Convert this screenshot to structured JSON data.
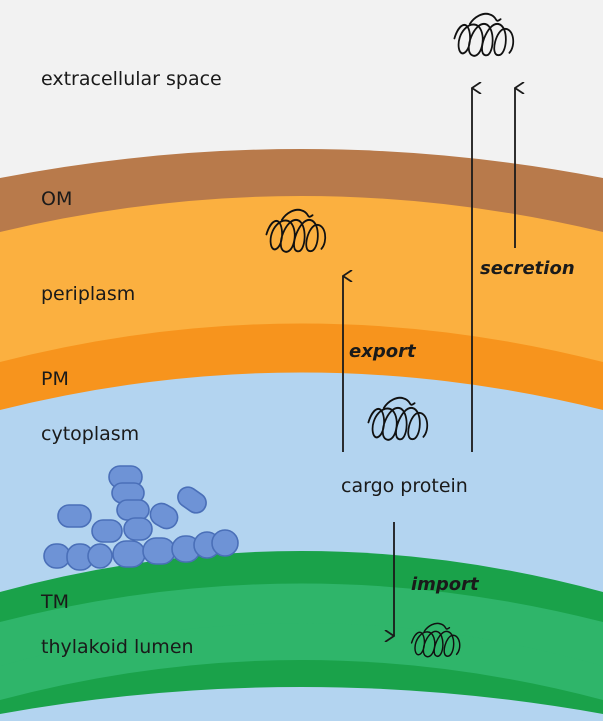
{
  "labels": {
    "extracellular_space": "extracellular space",
    "om": "OM",
    "periplasm": "periplasm",
    "pm": "PM",
    "cytoplasm": "cytoplasm",
    "tm": "TM",
    "thylakoid_lumen": "thylakoid lumen",
    "cargo_protein": "cargo protein"
  },
  "pathways": {
    "export": "export",
    "secretion": "secretion",
    "import": "import"
  },
  "colors": {
    "extracellular": "#f2f2f2",
    "outer_membrane": "#b87a4b",
    "periplasm": "#fbb040",
    "plasma_membrane": "#f7941d",
    "cytoplasm": "#b3d4f0",
    "thylakoid_membrane_dark": "#1aa24a",
    "thylakoid_membrane_light": "#2fb56a",
    "granules": "#6e93d6"
  }
}
